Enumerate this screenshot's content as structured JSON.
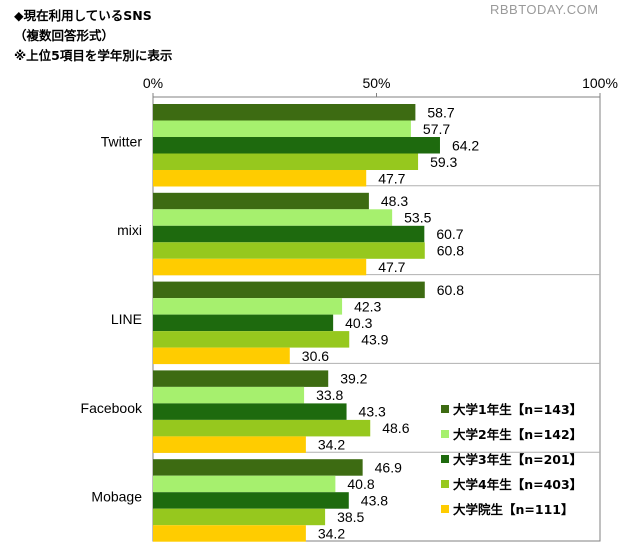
{
  "header": {
    "title": "◆現在利用しているSNS",
    "subtitle": "（複数回答形式）",
    "note": "※上位5項目を学年別に表示"
  },
  "watermark": "RBBTODAY.COM",
  "chart_data": {
    "type": "bar",
    "orientation": "horizontal",
    "title": "現在利用しているSNS",
    "categories": [
      "Twitter",
      "mixi",
      "LINE",
      "Facebook",
      "Mobage"
    ],
    "series": [
      {
        "name": "大学1年生【n=143】",
        "color": "#3d6b12",
        "values": [
          58.7,
          48.3,
          60.8,
          39.2,
          46.9
        ]
      },
      {
        "name": "大学2年生【n=142】",
        "color": "#a6f06e",
        "values": [
          57.7,
          53.5,
          42.3,
          33.8,
          40.8
        ]
      },
      {
        "name": "大学3年生【n=201】",
        "color": "#1e6a0e",
        "values": [
          64.2,
          60.7,
          40.3,
          43.3,
          43.8
        ]
      },
      {
        "name": "大学4年生【n=403】",
        "color": "#96c81e",
        "values": [
          59.3,
          60.8,
          43.9,
          48.6,
          38.5
        ]
      },
      {
        "name": "大学院生【n=111】",
        "color": "#ffcc00",
        "values": [
          47.7,
          47.7,
          30.6,
          34.2,
          34.2
        ]
      }
    ],
    "xlim": [
      0,
      100
    ],
    "ticks": [
      "0%",
      "50%",
      "100%"
    ],
    "legend_position": "bottom-right",
    "grid": false
  }
}
